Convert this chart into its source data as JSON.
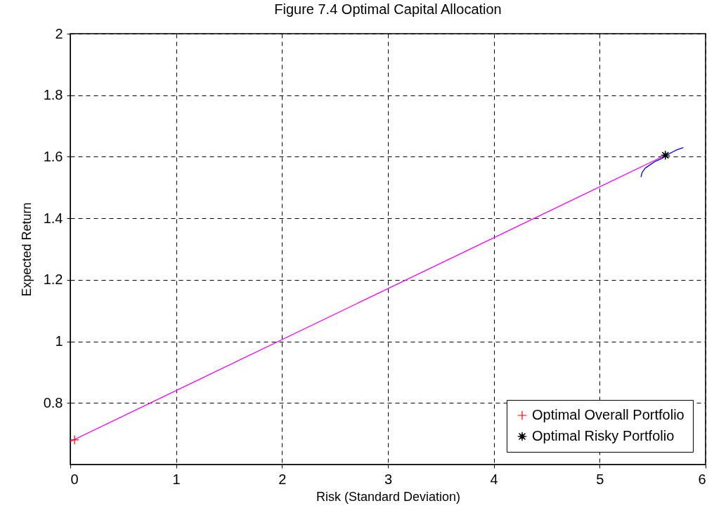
{
  "chart_data": {
    "type": "line",
    "title": "Figure 7.4 Optimal Capital Allocation",
    "xlabel": "Risk (Standard Deviation)",
    "ylabel": "Expected Return",
    "xlim": [
      0,
      6
    ],
    "xticks": [
      0,
      1,
      2,
      3,
      4,
      5,
      6
    ],
    "ylim": [
      0.6,
      2
    ],
    "yticks": [
      0.8,
      1,
      1.2,
      1.4,
      1.6,
      1.8,
      2
    ],
    "grid": true,
    "legend": "bottom right",
    "line_style": "solid",
    "series": [
      {
        "color": "#ff00ff",
        "x": [
          0,
          5.62
        ],
        "values": [
          0.675,
          1.605
        ]
      },
      {
        "color": "#0000ff",
        "x": [
          5.39,
          5.4,
          5.43,
          5.48,
          5.53,
          5.59,
          5.62,
          5.68,
          5.73,
          5.79
        ],
        "values": [
          1.534,
          1.549,
          1.563,
          1.575,
          1.586,
          1.595,
          1.605,
          1.614,
          1.623,
          1.63
        ]
      },
      {
        "type": "scatter",
        "name": "Optimal Overall Portfolio",
        "color": "#ff0000",
        "marker": "cross",
        "x": [
          0.04
        ],
        "values": [
          0.68
        ]
      },
      {
        "type": "scatter",
        "name": "Optimal Risky Portfolio",
        "color": "#000000",
        "marker": "star",
        "x": [
          5.62
        ],
        "values": [
          1.605
        ]
      }
    ]
  }
}
